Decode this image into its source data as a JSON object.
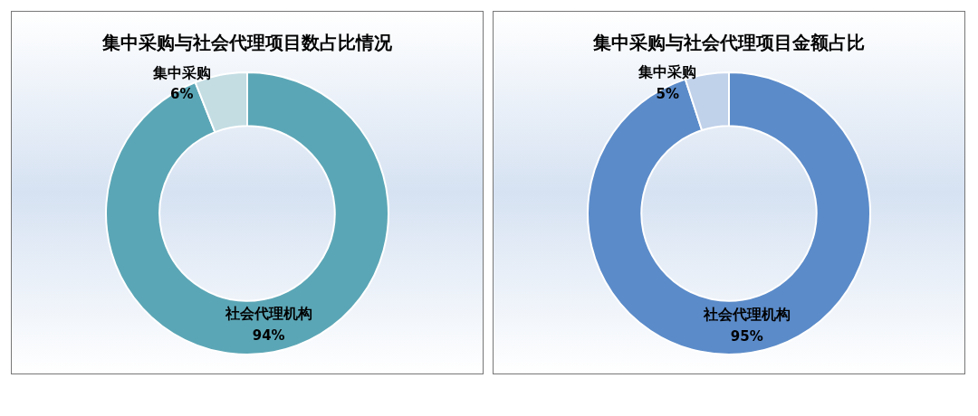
{
  "chart_data": [
    {
      "type": "donut",
      "title": "集中采购与社会代理项目数占比情况",
      "categories": [
        "社会代理机构",
        "集中采购"
      ],
      "values": [
        94,
        6
      ],
      "colors": [
        "#5ba6b6",
        "#c3dde3"
      ],
      "value_labels": [
        "94%",
        "6%"
      ],
      "legend": false
    },
    {
      "type": "donut",
      "title": "集中采购与社会代理项目金额占比",
      "categories": [
        "社会代理机构",
        "集中采购"
      ],
      "values": [
        95,
        5
      ],
      "colors": [
        "#5b8bc9",
        "#c0d1ea"
      ],
      "value_labels": [
        "95%",
        "5%"
      ],
      "legend": false
    }
  ]
}
